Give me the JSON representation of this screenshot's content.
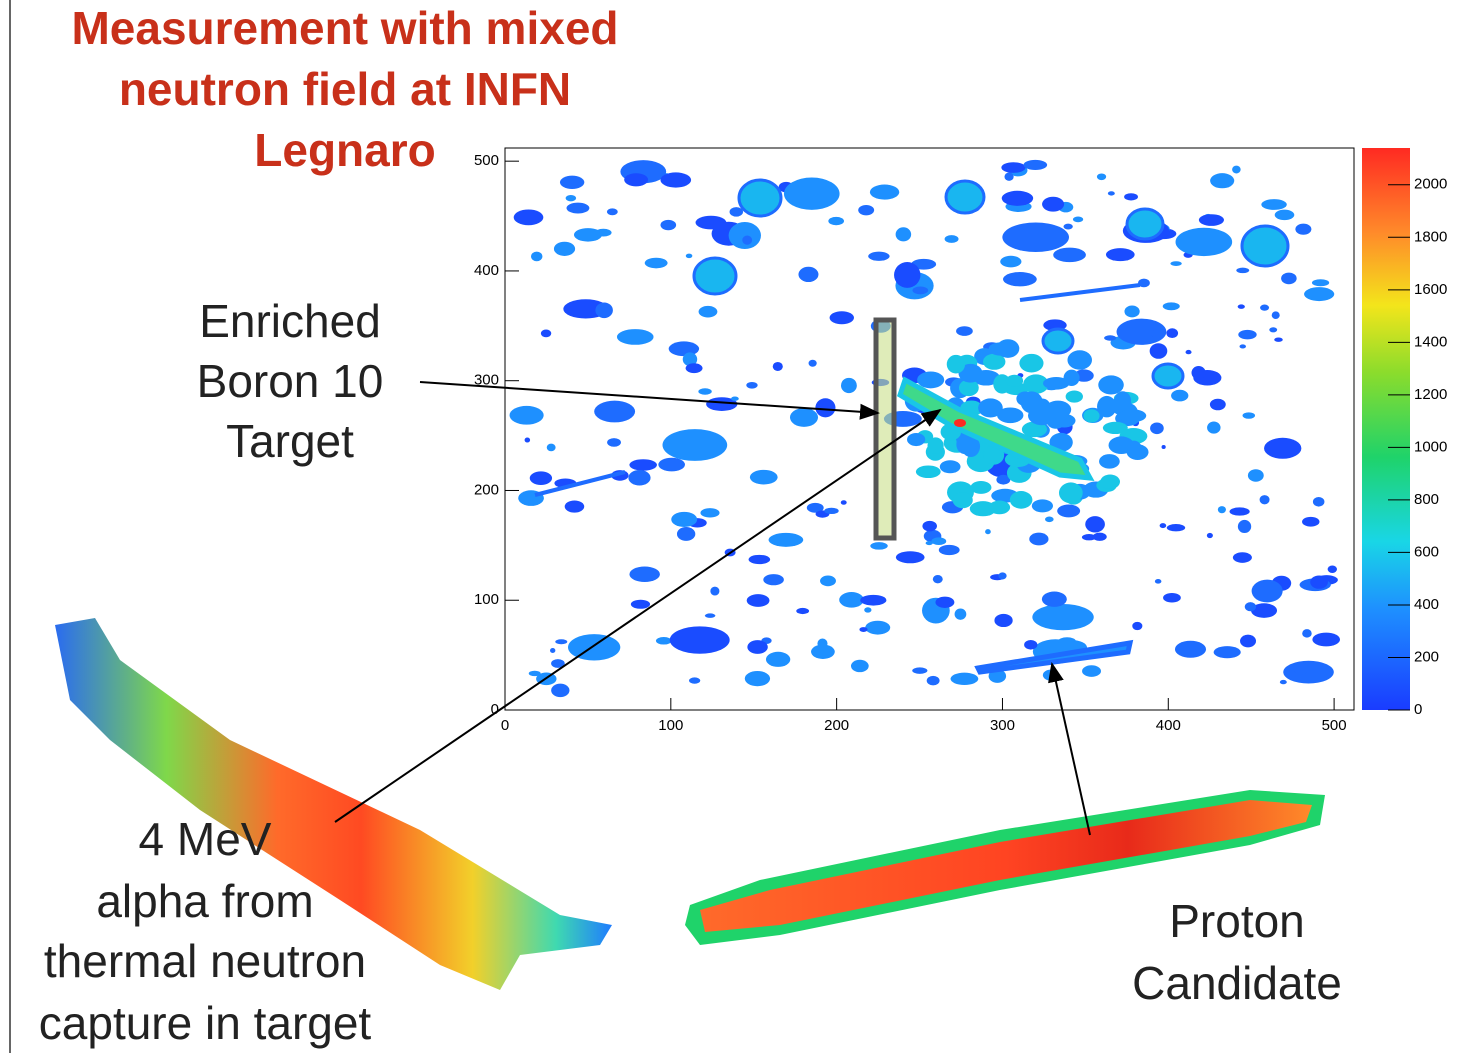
{
  "chart_data": {
    "type": "heatmap",
    "title_lines": [
      "Measurement with mixed",
      "neutron field at INFN",
      "Legnaro"
    ],
    "xlim": [
      0,
      512
    ],
    "ylim": [
      0,
      512
    ],
    "xticks": [
      0,
      100,
      200,
      300,
      400,
      500
    ],
    "yticks": [
      0,
      100,
      200,
      300,
      400,
      500
    ],
    "zlim": [
      0,
      2140
    ],
    "zticks": [
      0,
      200,
      400,
      600,
      800,
      1000,
      1200,
      1400,
      1600,
      1800,
      2000
    ],
    "annotations": {
      "target": [
        "Enriched",
        "Boron 10",
        "Target"
      ],
      "alpha": [
        "4 MeV",
        "alpha from",
        "thermal neutron",
        "capture in target"
      ],
      "proton": [
        "Proton",
        "Candidate"
      ]
    }
  }
}
